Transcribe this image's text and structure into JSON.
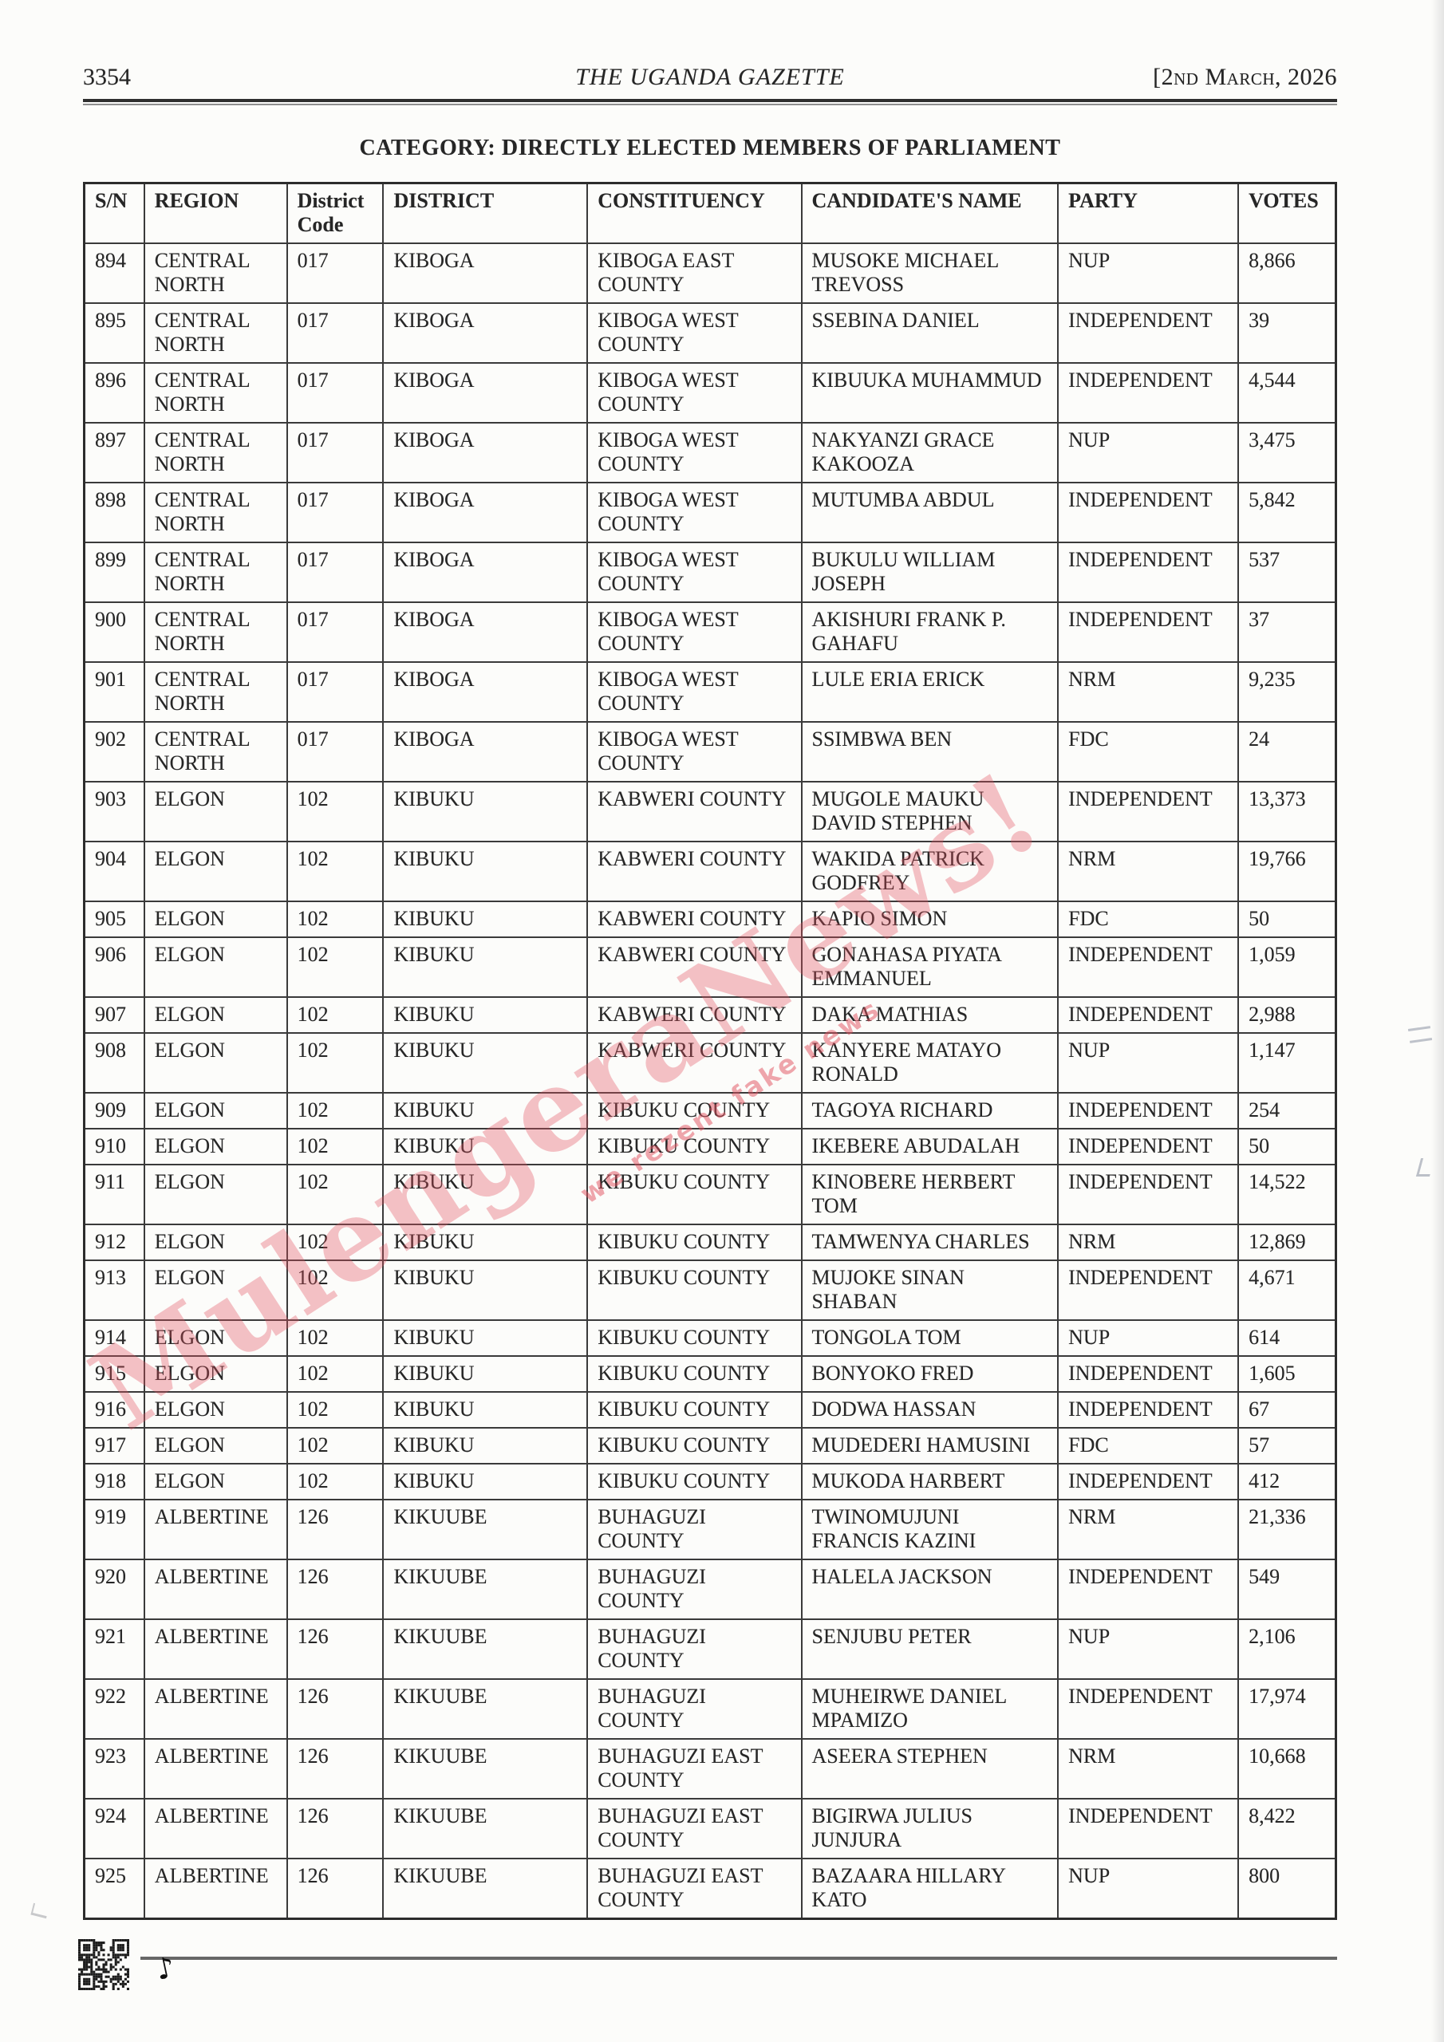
{
  "header": {
    "page_number": "3354",
    "publication_title": "THE UGANDA GAZETTE",
    "date": "[2nd March, 2026"
  },
  "section_title": "CATEGORY: DIRECTLY ELECTED MEMBERS OF PARLIAMENT",
  "table": {
    "columns": [
      "S/N",
      "REGION",
      "District Code",
      "DISTRICT",
      "CONSTITUENCY",
      "CANDIDATE'S NAME",
      "PARTY",
      "VOTES"
    ],
    "rows": [
      [
        "894",
        "CENTRAL NORTH",
        "017",
        "KIBOGA",
        "KIBOGA EAST COUNTY",
        "MUSOKE MICHAEL TREVOSS",
        "NUP",
        "8,866"
      ],
      [
        "895",
        "CENTRAL NORTH",
        "017",
        "KIBOGA",
        "KIBOGA WEST COUNTY",
        "SSEBINA DANIEL",
        "INDEPENDENT",
        "39"
      ],
      [
        "896",
        "CENTRAL NORTH",
        "017",
        "KIBOGA",
        "KIBOGA WEST COUNTY",
        "KIBUUKA MUHAMMUD",
        "INDEPENDENT",
        "4,544"
      ],
      [
        "897",
        "CENTRAL NORTH",
        "017",
        "KIBOGA",
        "KIBOGA WEST COUNTY",
        "NAKYANZI GRACE KAKOOZA",
        "NUP",
        "3,475"
      ],
      [
        "898",
        "CENTRAL NORTH",
        "017",
        "KIBOGA",
        "KIBOGA WEST COUNTY",
        "MUTUMBA ABDUL",
        "INDEPENDENT",
        "5,842"
      ],
      [
        "899",
        "CENTRAL NORTH",
        "017",
        "KIBOGA",
        "KIBOGA WEST COUNTY",
        "BUKULU WILLIAM JOSEPH",
        "INDEPENDENT",
        "537"
      ],
      [
        "900",
        "CENTRAL NORTH",
        "017",
        "KIBOGA",
        "KIBOGA WEST COUNTY",
        "AKISHURI FRANK P. GAHAFU",
        "INDEPENDENT",
        "37"
      ],
      [
        "901",
        "CENTRAL NORTH",
        "017",
        "KIBOGA",
        "KIBOGA WEST COUNTY",
        "LULE ERIA ERICK",
        "NRM",
        "9,235"
      ],
      [
        "902",
        "CENTRAL NORTH",
        "017",
        "KIBOGA",
        "KIBOGA WEST COUNTY",
        "SSIMBWA BEN",
        "FDC",
        "24"
      ],
      [
        "903",
        "ELGON",
        "102",
        "KIBUKU",
        "KABWERI COUNTY",
        "MUGOLE MAUKU DAVID STEPHEN",
        "INDEPENDENT",
        "13,373"
      ],
      [
        "904",
        "ELGON",
        "102",
        "KIBUKU",
        "KABWERI COUNTY",
        "WAKIDA PATRICK GODFREY",
        "NRM",
        "19,766"
      ],
      [
        "905",
        "ELGON",
        "102",
        "KIBUKU",
        "KABWERI COUNTY",
        "KAPIO SIMON",
        "FDC",
        "50"
      ],
      [
        "906",
        "ELGON",
        "102",
        "KIBUKU",
        "KABWERI COUNTY",
        "GONAHASA PIYATA EMMANUEL",
        "INDEPENDENT",
        "1,059"
      ],
      [
        "907",
        "ELGON",
        "102",
        "KIBUKU",
        "KABWERI COUNTY",
        "DAKA MATHIAS",
        "INDEPENDENT",
        "2,988"
      ],
      [
        "908",
        "ELGON",
        "102",
        "KIBUKU",
        "KABWERI COUNTY",
        "KANYERE MATAYO RONALD",
        "NUP",
        "1,147"
      ],
      [
        "909",
        "ELGON",
        "102",
        "KIBUKU",
        "KIBUKU COUNTY",
        "TAGOYA RICHARD",
        "INDEPENDENT",
        "254"
      ],
      [
        "910",
        "ELGON",
        "102",
        "KIBUKU",
        "KIBUKU COUNTY",
        "IKEBERE ABUDALAH",
        "INDEPENDENT",
        "50"
      ],
      [
        "911",
        "ELGON",
        "102",
        "KIBUKU",
        "KIBUKU COUNTY",
        "KINOBERE HERBERT TOM",
        "INDEPENDENT",
        "14,522"
      ],
      [
        "912",
        "ELGON",
        "102",
        "KIBUKU",
        "KIBUKU COUNTY",
        "TAMWENYA CHARLES",
        "NRM",
        "12,869"
      ],
      [
        "913",
        "ELGON",
        "102",
        "KIBUKU",
        "KIBUKU COUNTY",
        "MUJOKE SINAN SHABAN",
        "INDEPENDENT",
        "4,671"
      ],
      [
        "914",
        "ELGON",
        "102",
        "KIBUKU",
        "KIBUKU COUNTY",
        "TONGOLA TOM",
        "NUP",
        "614"
      ],
      [
        "915",
        "ELGON",
        "102",
        "KIBUKU",
        "KIBUKU COUNTY",
        "BONYOKO FRED",
        "INDEPENDENT",
        "1,605"
      ],
      [
        "916",
        "ELGON",
        "102",
        "KIBUKU",
        "KIBUKU COUNTY",
        "DODWA HASSAN",
        "INDEPENDENT",
        "67"
      ],
      [
        "917",
        "ELGON",
        "102",
        "KIBUKU",
        "KIBUKU COUNTY",
        "MUDEDERI HAMUSINI",
        "FDC",
        "57"
      ],
      [
        "918",
        "ELGON",
        "102",
        "KIBUKU",
        "KIBUKU COUNTY",
        "MUKODA HARBERT",
        "INDEPENDENT",
        "412"
      ],
      [
        "919",
        "ALBERTINE",
        "126",
        "KIKUUBE",
        "BUHAGUZI COUNTY",
        "TWINOMUJUNI FRANCIS KAZINI",
        "NRM",
        "21,336"
      ],
      [
        "920",
        "ALBERTINE",
        "126",
        "KIKUUBE",
        "BUHAGUZI COUNTY",
        "HALELA JACKSON",
        "INDEPENDENT",
        "549"
      ],
      [
        "921",
        "ALBERTINE",
        "126",
        "KIKUUBE",
        "BUHAGUZI COUNTY",
        "SENJUBU PETER",
        "NUP",
        "2,106"
      ],
      [
        "922",
        "ALBERTINE",
        "126",
        "KIKUUBE",
        "BUHAGUZI COUNTY",
        "MUHEIRWE DANIEL MPAMIZO",
        "INDEPENDENT",
        "17,974"
      ],
      [
        "923",
        "ALBERTINE",
        "126",
        "KIKUUBE",
        "BUHAGUZI EAST COUNTY",
        "ASEERA STEPHEN",
        "NRM",
        "10,668"
      ],
      [
        "924",
        "ALBERTINE",
        "126",
        "KIKUUBE",
        "BUHAGUZI EAST COUNTY",
        "BIGIRWA JULIUS JUNJURA",
        "INDEPENDENT",
        "8,422"
      ],
      [
        "925",
        "ALBERTINE",
        "126",
        "KIKUUBE",
        "BUHAGUZI EAST COUNTY",
        "BAZAARA HILLARY KATO",
        "NUP",
        "800"
      ]
    ]
  },
  "watermark": {
    "text": "MulengeraNews!",
    "tagline": "we rezent fake news",
    "color": "#e2505e"
  }
}
